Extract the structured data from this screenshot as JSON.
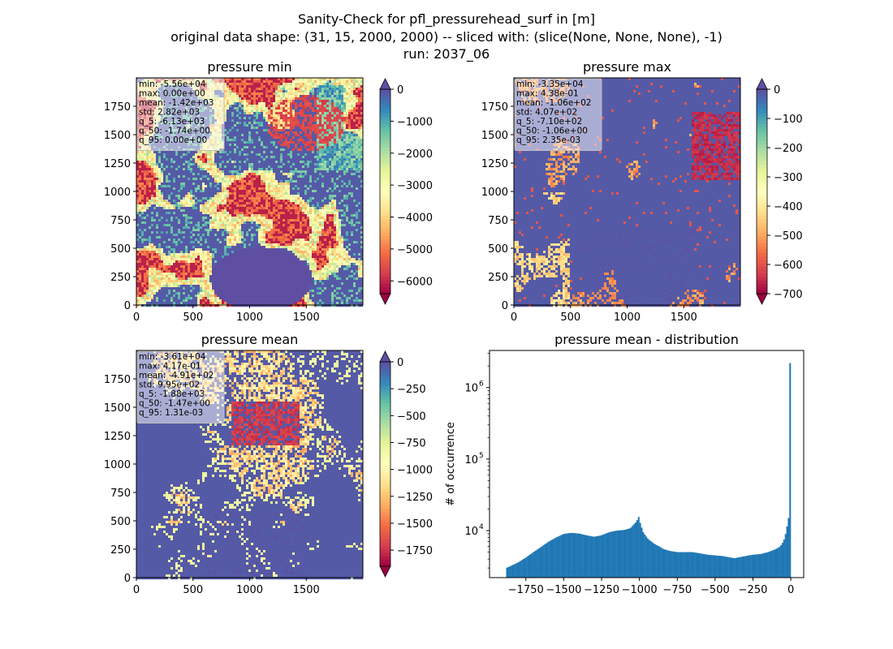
{
  "figure": {
    "suptitle_lines": [
      "Sanity-Check for pfl_pressurehead_surf in [m]",
      "original data shape: (31, 15, 2000, 2000) -- sliced with: (slice(None, None, None), -1)",
      "run: 2037_06"
    ]
  },
  "colors": {
    "spectral": [
      "#9e0142",
      "#d53e4f",
      "#f46d43",
      "#fdae61",
      "#fee08b",
      "#ffffbf",
      "#e6f598",
      "#abdda4",
      "#66c2a5",
      "#3288bd",
      "#5e4fa2"
    ],
    "hist_bar": "#1f77b4",
    "stats_box_fill": "#ffffff",
    "stats_box_edge": "#bfbfbf"
  },
  "chart_data": [
    {
      "type": "heatmap",
      "title": "pressure min",
      "colormap": "Spectral",
      "x_ticks": [
        "0",
        "500",
        "1000",
        "1500"
      ],
      "y_ticks": [
        "0",
        "250",
        "500",
        "750",
        "1000",
        "1250",
        "1500",
        "1750"
      ],
      "xlim": [
        0,
        2000
      ],
      "ylim": [
        0,
        2000
      ],
      "colorbar": {
        "range": [
          -6400,
          0
        ],
        "extend": "both",
        "ticks": [
          "0",
          "−1000",
          "−2000",
          "−3000",
          "−4000",
          "−5000",
          "−6000"
        ],
        "tick_values": [
          0,
          -1000,
          -2000,
          -3000,
          -4000,
          -5000,
          -6000
        ]
      },
      "stats": [
        "min: -5.56e+04",
        "max: 0.00e+00",
        "mean: -1.42e+03",
        "std: 2.82e+03",
        "q_5: -6.13e+03",
        "q_50: -1.74e+00",
        "q_95: 0.00e+00"
      ]
    },
    {
      "type": "heatmap",
      "title": "pressure max",
      "colormap": "Spectral",
      "x_ticks": [
        "0",
        "500",
        "1000",
        "1500"
      ],
      "y_ticks": [
        "0",
        "250",
        "500",
        "750",
        "1000",
        "1250",
        "1500",
        "1750"
      ],
      "xlim": [
        0,
        2000
      ],
      "ylim": [
        0,
        2000
      ],
      "colorbar": {
        "range": [
          -700,
          0
        ],
        "extend": "both",
        "ticks": [
          "0",
          "−100",
          "−200",
          "−300",
          "−400",
          "−500",
          "−600",
          "−700"
        ],
        "tick_values": [
          0,
          -100,
          -200,
          -300,
          -400,
          -500,
          -600,
          -700
        ]
      },
      "stats": [
        "min: -3.35e+04",
        "max: 4.38e-01",
        "mean: -1.06e+02",
        "std: 4.07e+02",
        "q_5: -7.10e+02",
        "q_50: -1.06e+00",
        "q_95: 2.35e-03"
      ]
    },
    {
      "type": "heatmap",
      "title": "pressure mean",
      "colormap": "Spectral",
      "x_ticks": [
        "0",
        "500",
        "1000",
        "1500"
      ],
      "y_ticks": [
        "0",
        "250",
        "500",
        "750",
        "1000",
        "1250",
        "1500",
        "1750"
      ],
      "xlim": [
        0,
        2000
      ],
      "ylim": [
        0,
        2000
      ],
      "colorbar": {
        "range": [
          -1900,
          0
        ],
        "extend": "both",
        "ticks": [
          "0",
          "−250",
          "−500",
          "−750",
          "−1000",
          "−1250",
          "−1500",
          "−1750"
        ],
        "tick_values": [
          0,
          -250,
          -500,
          -750,
          -1000,
          -1250,
          -1500,
          -1750
        ]
      },
      "stats": [
        "min: -3.61e+04",
        "max: 4.17e-01",
        "mean: -4.91e+02",
        "std: 9.95e+02",
        "q_5: -1.88e+03",
        "q_50: -1.47e+00",
        "q_95: 1.31e-03"
      ]
    },
    {
      "type": "bar",
      "subtype": "histogram",
      "title": "pressure mean - distribution",
      "xlabel": "",
      "ylabel": "# of occurrence",
      "y_scale": "log",
      "xlim": [
        -1990,
        85
      ],
      "ylim": [
        2200,
        3300000
      ],
      "x_ticks": [
        "−1750",
        "−1500",
        "−1250",
        "−1000",
        "−750",
        "−500",
        "−250",
        "0"
      ],
      "x_tick_values": [
        -1750,
        -1500,
        -1250,
        -1000,
        -750,
        -500,
        -250,
        0
      ],
      "y_ticks": [
        "10^4",
        "10^5",
        "10^6"
      ],
      "y_tick_values": [
        10000,
        100000,
        1000000
      ],
      "profile_x": [
        -1880,
        -1850,
        -1800,
        -1750,
        -1700,
        -1650,
        -1600,
        -1550,
        -1500,
        -1450,
        -1400,
        -1350,
        -1300,
        -1250,
        -1200,
        -1150,
        -1100,
        -1060,
        -1040,
        -1025,
        -1015,
        -1005,
        -995,
        -985,
        -975,
        -960,
        -940,
        -920,
        -900,
        -870,
        -840,
        -800,
        -750,
        -700,
        -650,
        -600,
        -550,
        -500,
        -450,
        -400,
        -370,
        -350,
        -300,
        -250,
        -200,
        -150,
        -100,
        -70,
        -50,
        -40,
        -30,
        -20,
        -15,
        -10,
        -7,
        -5,
        -3,
        0
      ],
      "profile_y": [
        3000,
        3200,
        3600,
        4200,
        5000,
        5900,
        7000,
        8000,
        9000,
        9300,
        9100,
        8600,
        8200,
        8600,
        9500,
        10000,
        10200,
        10800,
        12000,
        13000,
        14000,
        15500,
        12800,
        11000,
        9500,
        8500,
        7500,
        7000,
        6500,
        6000,
        5500,
        5200,
        5000,
        5000,
        5000,
        4800,
        4600,
        4500,
        4400,
        4200,
        4100,
        4200,
        4400,
        4600,
        4700,
        5000,
        5500,
        6000,
        7000,
        8000,
        10000,
        13000,
        15000,
        19000,
        40000,
        800000,
        2200000,
        2200000
      ]
    }
  ]
}
